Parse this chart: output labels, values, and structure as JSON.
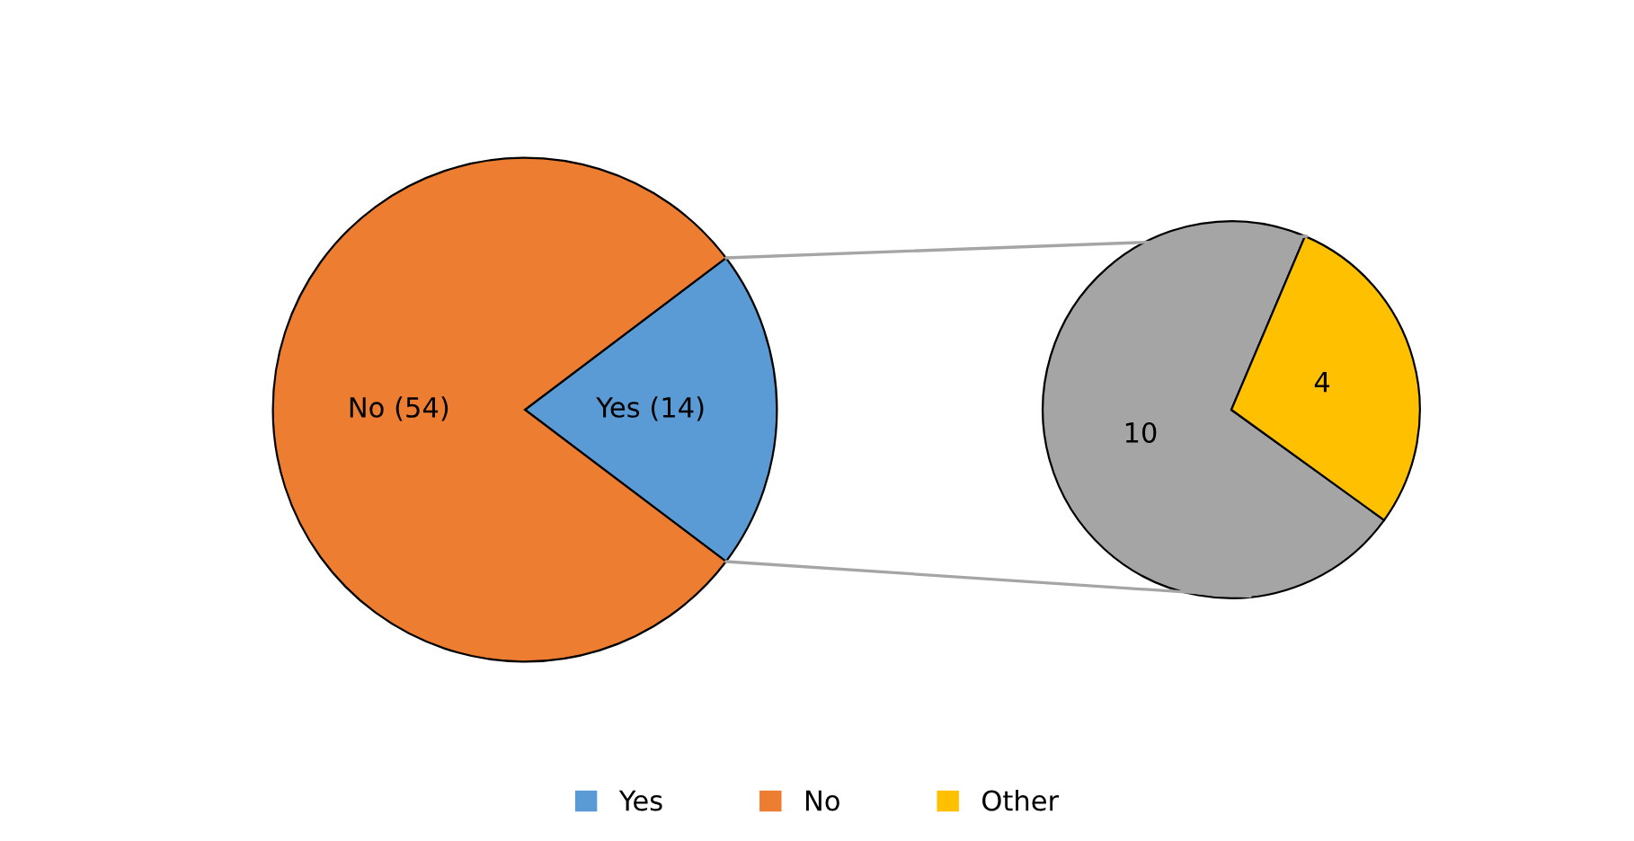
{
  "chart_data": [
    {
      "type": "pie",
      "categories": [
        "Yes",
        "No"
      ],
      "values": [
        14,
        54
      ],
      "colors": [
        "#5b9bd5",
        "#ed7d31"
      ],
      "value_labels": [
        "Yes (14)",
        "No (54)"
      ],
      "legend": "bottom"
    },
    {
      "type": "pie",
      "categories": [
        null,
        "Other"
      ],
      "values": [
        10,
        4
      ],
      "colors": [
        "#a5a5a5",
        "#ffc000"
      ],
      "data_labels": true,
      "legend": "bottom"
    }
  ]
}
